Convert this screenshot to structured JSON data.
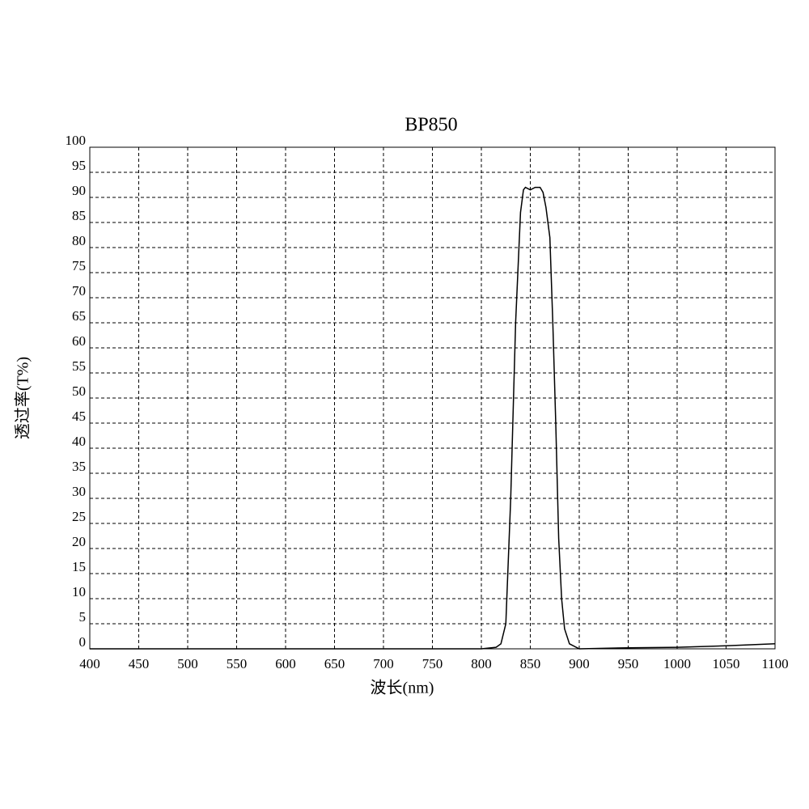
{
  "chart_data": {
    "type": "line",
    "title": "BP850",
    "x_label": "波长(nm)",
    "y_label": "透过率(T%)",
    "x": [
      400,
      500,
      600,
      700,
      800,
      815,
      820,
      825,
      830,
      835,
      840,
      843,
      845,
      850,
      855,
      860,
      863,
      866,
      870,
      873,
      876,
      879,
      882,
      885,
      890,
      900,
      950,
      1000,
      1050,
      1100
    ],
    "series": [
      {
        "name": "BP850",
        "color": "#000000",
        "values": [
          0,
          0,
          0,
          0,
          0,
          0.3,
          1,
          5,
          30,
          65,
          87,
          91.5,
          92,
          91.5,
          92,
          92,
          91,
          88,
          82,
          65,
          45,
          22,
          10,
          4,
          1,
          0,
          0.2,
          0.3,
          0.6,
          1
        ]
      }
    ],
    "xlim": [
      400,
      1100
    ],
    "xticks": [
      400,
      450,
      500,
      550,
      600,
      650,
      700,
      750,
      800,
      850,
      900,
      950,
      1000,
      1050,
      1100
    ],
    "ylim": [
      0,
      100
    ],
    "yticks": [
      0,
      5,
      10,
      15,
      20,
      25,
      30,
      35,
      40,
      45,
      50,
      55,
      60,
      65,
      70,
      75,
      80,
      85,
      90,
      95,
      100
    ],
    "grid": true
  }
}
